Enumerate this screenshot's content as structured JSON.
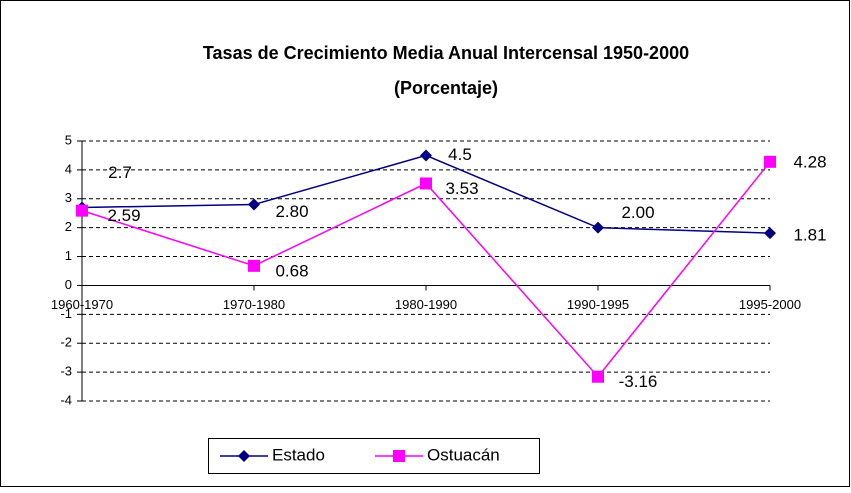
{
  "chart_data": {
    "type": "line",
    "title": "Tasas de Crecimiento Media Anual Intercensal 1950-2000",
    "subtitle": "(Porcentaje)",
    "categories": [
      "1960-1970",
      "1970-1980",
      "1980-1990",
      "1990-1995",
      "1995-2000"
    ],
    "series": [
      {
        "name": "Estado",
        "color": "#000080",
        "marker": "diamond",
        "values": [
          2.7,
          2.8,
          4.5,
          2.0,
          1.81
        ],
        "value_labels": [
          "2.7",
          "2.80",
          "4.5",
          "2.00",
          "1.81"
        ]
      },
      {
        "name": "Ostuacán",
        "color": "#ff00ff",
        "marker": "square",
        "values": [
          2.59,
          0.68,
          3.53,
          -3.16,
          4.28
        ],
        "value_labels": [
          "2.59",
          "0.68",
          "3.53",
          "-3.16",
          "4.28"
        ]
      }
    ],
    "ylim": [
      -4,
      5
    ],
    "yticks": [
      -4,
      -3,
      -2,
      -1,
      0,
      1,
      2,
      3,
      4,
      5
    ],
    "grid": true,
    "legend": "bottom"
  }
}
